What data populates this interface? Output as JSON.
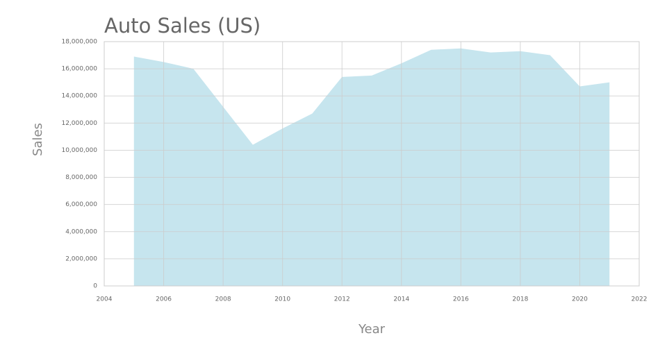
{
  "chart_data": {
    "type": "area",
    "title": "Auto Sales (US)",
    "x_label": "Year",
    "y_label": "Sales",
    "x": [
      2005,
      2006,
      2007,
      2008,
      2009,
      2010,
      2011,
      2012,
      2013,
      2014,
      2015,
      2016,
      2017,
      2018,
      2019,
      2020,
      2021
    ],
    "series": [
      {
        "name": "Sales",
        "color": "#b3dce8",
        "values": [
          16900000,
          16500000,
          16000000,
          13200000,
          10400000,
          11600000,
          12700000,
          15400000,
          15500000,
          16400000,
          17400000,
          17500000,
          17200000,
          17300000,
          17000000,
          14700000,
          15000000
        ]
      }
    ],
    "xlim": [
      2004,
      2022
    ],
    "xticks": [
      2004,
      2006,
      2008,
      2010,
      2012,
      2014,
      2016,
      2018,
      2020,
      2022
    ],
    "ylim": [
      0,
      18000000
    ],
    "yticks": [
      0,
      {
        "value": 2000000,
        "label": "2,000,000"
      },
      {
        "value": 4000000,
        "label": "4,000,000"
      },
      {
        "value": 6000000,
        "label": "6,000,000"
      },
      {
        "value": 8000000,
        "label": "8,000,000"
      },
      {
        "value": 10000000,
        "label": "10,000,000"
      },
      {
        "value": 12000000,
        "label": "12,000,000"
      },
      {
        "value": 14000000,
        "label": "14,000,000"
      },
      {
        "value": 16000000,
        "label": "16,000,000"
      },
      {
        "value": 18000000,
        "label": "18,000,000"
      }
    ],
    "grid": true
  }
}
